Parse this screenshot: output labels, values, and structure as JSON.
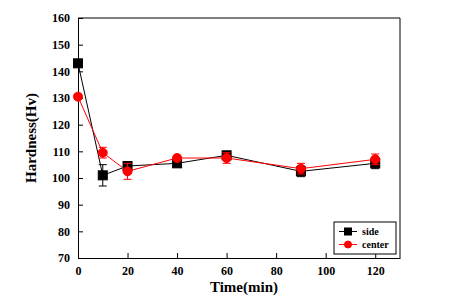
{
  "chart_data": {
    "type": "line",
    "x_label": "Time(min)",
    "y_label": "Hardness(Hv)",
    "x": [
      0,
      10,
      20,
      40,
      60,
      90,
      120
    ],
    "series": [
      {
        "name": "side",
        "color": "#000000",
        "marker": "square",
        "line_style": "solid",
        "values": [
          143,
          101,
          104.5,
          105.5,
          108.5,
          102.5,
          105.5
        ],
        "errors": [
          1,
          4,
          1.5,
          1,
          1.5,
          2,
          2
        ]
      },
      {
        "name": "center",
        "color": "#ff0000",
        "marker": "circle",
        "line_style": "solid",
        "values": [
          130.5,
          109.5,
          102.5,
          107.5,
          107.5,
          103.5,
          107
        ],
        "errors": [
          1,
          2,
          3,
          1,
          2,
          2,
          2
        ]
      }
    ],
    "xlim": [
      0,
      130
    ],
    "xticks": [
      0,
      20,
      40,
      60,
      80,
      100,
      120
    ],
    "ylim": [
      70,
      160
    ],
    "yticks": [
      70,
      80,
      90,
      100,
      110,
      120,
      130,
      140,
      150,
      160
    ],
    "legend": "lower right",
    "grid": false
  }
}
